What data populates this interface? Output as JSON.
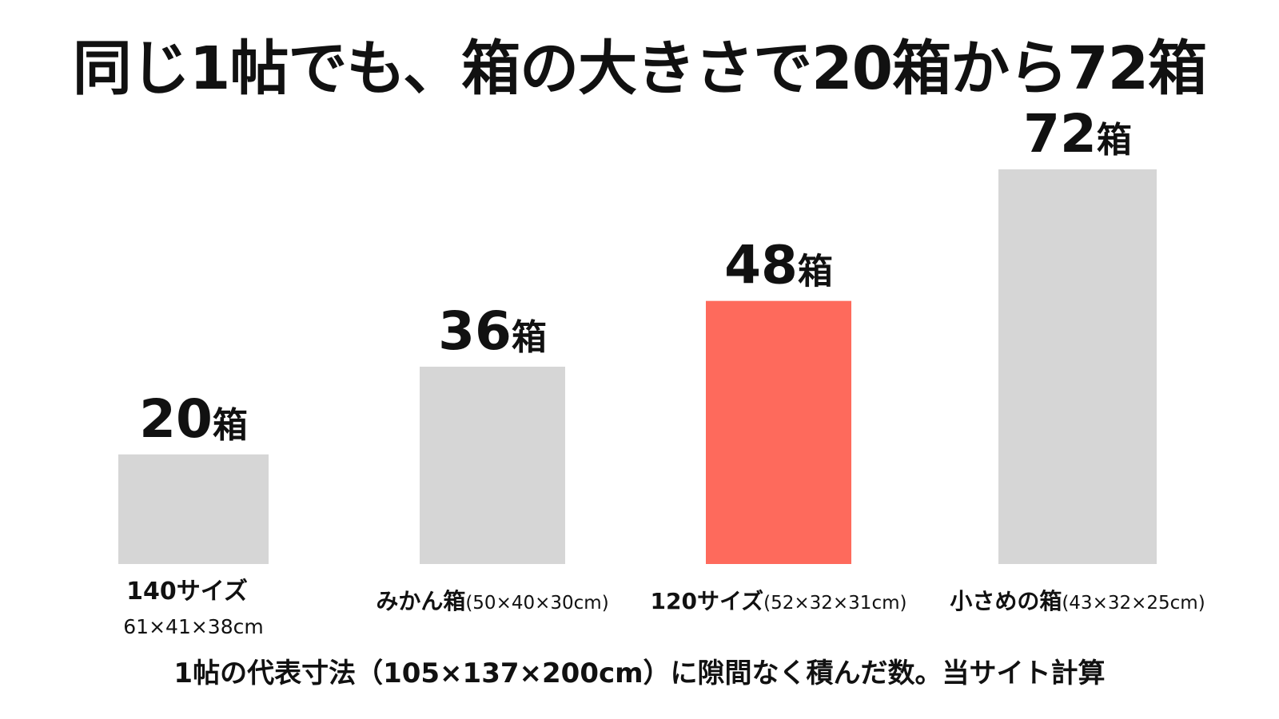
{
  "title": "同じ1帖でも、箱の大きさで20箱から72箱",
  "footnote": "1帖の代表寸法（105×137×200cm）に隙間なく積んだ数。当サイト計算",
  "colors": {
    "default_bar": "#d6d6d6",
    "highlight_bar": "#fe6a5c",
    "text": "#111111"
  },
  "chart_data": {
    "type": "bar",
    "title": "同じ1帖でも、箱の大きさで20箱から72箱",
    "categories": [
      {
        "name": "140サイズ",
        "dims": "61×41×38cm",
        "layout": "stacked"
      },
      {
        "name": "みかん箱",
        "dims": "(50×40×30cm)",
        "layout": "inline"
      },
      {
        "name": "120サイズ",
        "dims": "(52×32×31cm)",
        "layout": "inline"
      },
      {
        "name": "小さめの箱",
        "dims": "(43×32×25cm)",
        "layout": "inline"
      }
    ],
    "values": [
      20,
      36,
      48,
      72
    ],
    "value_labels": [
      {
        "number": "20",
        "unit": "箱"
      },
      {
        "number": "36",
        "unit": "箱"
      },
      {
        "number": "48",
        "unit": "箱"
      },
      {
        "number": "72",
        "unit": "箱"
      }
    ],
    "highlight_index": 2,
    "ylim": [
      0,
      72
    ],
    "grid": false,
    "xlabel": "",
    "ylabel": ""
  }
}
